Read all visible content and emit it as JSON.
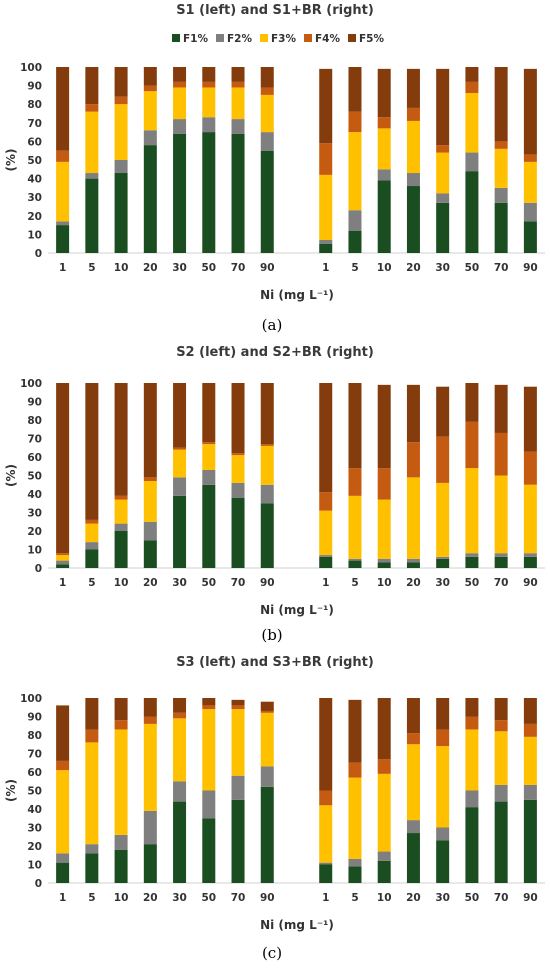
{
  "colors": {
    "F1%": "#1a4d1f",
    "F2%": "#7f7f7f",
    "F3%": "#ffc000",
    "F4%": "#c55a11",
    "F5%": "#843c0c"
  },
  "chart_data": [
    {
      "type": "bar",
      "stacked": true,
      "title": "S1 (left) and S1+BR (right)",
      "xlabel": "Ni (mg L⁻¹)",
      "ylabel": "(%)",
      "ylim": [
        0,
        100
      ],
      "yticks": [
        "0",
        "10",
        "20",
        "30",
        "40",
        "50",
        "60",
        "70",
        "80",
        "90",
        "100"
      ],
      "legend": [
        "F1%",
        "F2%",
        "F3%",
        "F4%",
        "F5%"
      ],
      "legend_position": "top",
      "caption": "(a)",
      "groups": [
        {
          "categories": [
            "1",
            "5",
            "10",
            "20",
            "30",
            "50",
            "70",
            "90"
          ],
          "series": [
            {
              "name": "F1%",
              "values": [
                15,
                40,
                43,
                58,
                64,
                65,
                64,
                55
              ]
            },
            {
              "name": "F2%",
              "values": [
                2,
                3,
                7,
                8,
                8,
                8,
                8,
                10
              ]
            },
            {
              "name": "F3%",
              "values": [
                32,
                33,
                30,
                21,
                17,
                16,
                17,
                20
              ]
            },
            {
              "name": "F4%",
              "values": [
                6,
                4,
                4,
                3,
                3,
                3,
                3,
                4
              ]
            },
            {
              "name": "F5%",
              "values": [
                45,
                20,
                16,
                10,
                8,
                8,
                8,
                11
              ]
            }
          ]
        },
        {
          "categories": [
            "1",
            "5",
            "10",
            "20",
            "30",
            "50",
            "70",
            "90"
          ],
          "series": [
            {
              "name": "F1%",
              "values": [
                5,
                12,
                39,
                36,
                27,
                44,
                27,
                17
              ]
            },
            {
              "name": "F2%",
              "values": [
                2,
                11,
                6,
                7,
                5,
                10,
                8,
                10
              ]
            },
            {
              "name": "F3%",
              "values": [
                35,
                42,
                22,
                28,
                22,
                32,
                21,
                22
              ]
            },
            {
              "name": "F4%",
              "values": [
                17,
                11,
                6,
                7,
                4,
                6,
                4,
                4
              ]
            },
            {
              "name": "F5%",
              "values": [
                40,
                24,
                26,
                21,
                41,
                8,
                40,
                46
              ]
            }
          ]
        }
      ]
    },
    {
      "type": "bar",
      "stacked": true,
      "title": "S2 (left) and S2+BR (right)",
      "xlabel": "Ni (mg L⁻¹)",
      "ylabel": "(%)",
      "ylim": [
        0,
        100
      ],
      "yticks": [
        "0",
        "10",
        "20",
        "30",
        "40",
        "50",
        "60",
        "70",
        "80",
        "90",
        "100"
      ],
      "caption": "(b)",
      "groups": [
        {
          "categories": [
            "1",
            "5",
            "10",
            "20",
            "30",
            "50",
            "70",
            "90"
          ],
          "series": [
            {
              "name": "F1%",
              "values": [
                2,
                10,
                20,
                15,
                39,
                45,
                38,
                35
              ]
            },
            {
              "name": "F2%",
              "values": [
                2,
                4,
                4,
                10,
                10,
                8,
                8,
                10
              ]
            },
            {
              "name": "F3%",
              "values": [
                3,
                10,
                13,
                22,
                15,
                14,
                15,
                21
              ]
            },
            {
              "name": "F4%",
              "values": [
                1,
                2,
                2,
                2,
                1,
                1,
                1,
                1
              ]
            },
            {
              "name": "F5%",
              "values": [
                92,
                74,
                61,
                51,
                35,
                32,
                38,
                33
              ]
            }
          ]
        },
        {
          "categories": [
            "1",
            "5",
            "10",
            "20",
            "30",
            "50",
            "70",
            "90"
          ],
          "series": [
            {
              "name": "F1%",
              "values": [
                6,
                4,
                3,
                3,
                5,
                6,
                6,
                6
              ]
            },
            {
              "name": "F2%",
              "values": [
                1,
                1,
                2,
                2,
                1,
                2,
                2,
                2
              ]
            },
            {
              "name": "F3%",
              "values": [
                24,
                34,
                32,
                44,
                40,
                46,
                42,
                37
              ]
            },
            {
              "name": "F4%",
              "values": [
                10,
                15,
                17,
                19,
                25,
                25,
                23,
                18
              ]
            },
            {
              "name": "F5%",
              "values": [
                59,
                46,
                45,
                31,
                27,
                21,
                26,
                35
              ]
            }
          ]
        }
      ]
    },
    {
      "type": "bar",
      "stacked": true,
      "title": "S3 (left) and S3+BR (right)",
      "xlabel": "Ni (mg L⁻¹)",
      "ylabel": "(%)",
      "ylim": [
        0,
        100
      ],
      "yticks": [
        "0",
        "10",
        "20",
        "30",
        "40",
        "50",
        "60",
        "70",
        "80",
        "90",
        "100"
      ],
      "caption": "(c)",
      "groups": [
        {
          "categories": [
            "1",
            "5",
            "10",
            "20",
            "30",
            "50",
            "70",
            "90"
          ],
          "series": [
            {
              "name": "F1%",
              "values": [
                11,
                16,
                18,
                21,
                44,
                35,
                45,
                52
              ]
            },
            {
              "name": "F2%",
              "values": [
                5,
                5,
                8,
                18,
                11,
                15,
                13,
                11
              ]
            },
            {
              "name": "F3%",
              "values": [
                45,
                55,
                57,
                47,
                34,
                44,
                36,
                29
              ]
            },
            {
              "name": "F4%",
              "values": [
                5,
                7,
                5,
                4,
                3,
                2,
                2,
                1
              ]
            },
            {
              "name": "F5%",
              "values": [
                30,
                17,
                12,
                10,
                8,
                4,
                3,
                5
              ]
            }
          ]
        },
        {
          "categories": [
            "1",
            "5",
            "10",
            "20",
            "30",
            "50",
            "70",
            "90"
          ],
          "series": [
            {
              "name": "F1%",
              "values": [
                10,
                9,
                12,
                27,
                23,
                41,
                44,
                45
              ]
            },
            {
              "name": "F2%",
              "values": [
                1,
                4,
                5,
                7,
                7,
                9,
                9,
                8
              ]
            },
            {
              "name": "F3%",
              "values": [
                31,
                44,
                42,
                41,
                44,
                33,
                29,
                26
              ]
            },
            {
              "name": "F4%",
              "values": [
                8,
                8,
                8,
                6,
                9,
                7,
                6,
                7
              ]
            },
            {
              "name": "F5%",
              "values": [
                50,
                34,
                33,
                19,
                17,
                10,
                12,
                14
              ]
            }
          ]
        }
      ]
    }
  ]
}
